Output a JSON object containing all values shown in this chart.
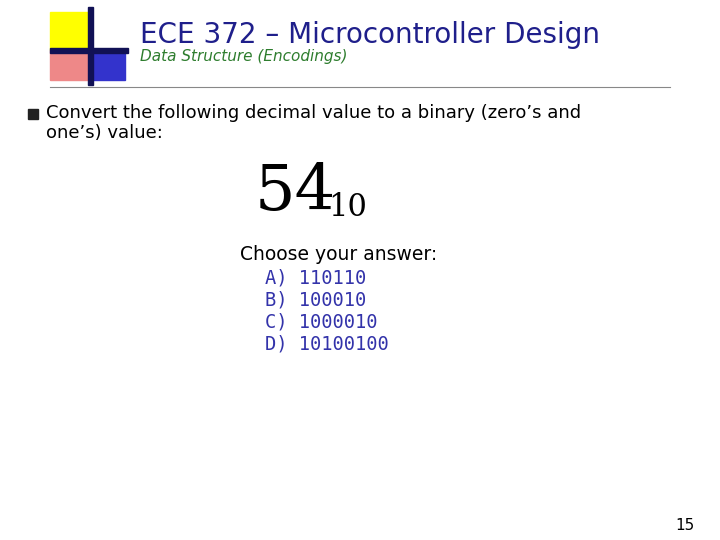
{
  "title": "ECE 372 – Microcontroller Design",
  "subtitle": "Data Structure (Encodings)",
  "bullet_text_line1": "Convert the following decimal value to a binary (zero’s and",
  "bullet_text_line2": "one’s) value:",
  "main_number": "54",
  "main_subscript": "10",
  "choose_label": "Choose your answer:",
  "answers": [
    "A) 110110",
    "B) 100010",
    "C) 1000010",
    "D) 10100100"
  ],
  "page_number": "15",
  "bg_color": "#ffffff",
  "title_color": "#1F1F8B",
  "subtitle_color": "#2e7d2e",
  "bullet_color": "#000000",
  "answer_color": "#3333aa",
  "choose_color": "#000000",
  "page_num_color": "#000000",
  "yellow_color": "#ffff00",
  "red_color": "#dd3333",
  "pink_color": "#ee8888",
  "blue_color": "#3333cc",
  "navy_color": "#111155"
}
